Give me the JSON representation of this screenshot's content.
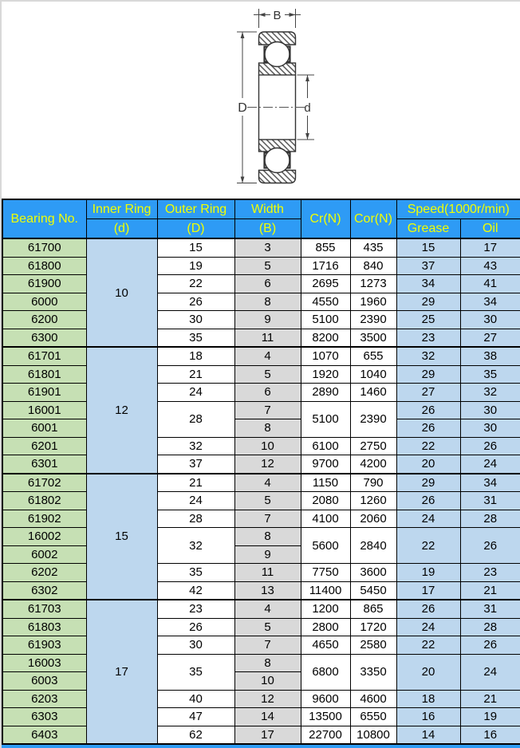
{
  "diagram": {
    "labels": {
      "width_label": "B",
      "outer_diameter_label": "D",
      "bore_diameter_label": "d"
    }
  },
  "table": {
    "header": {
      "bearing_no": "Bearing No.",
      "inner_ring": "Inner Ring",
      "inner_ring_sub": "(d)",
      "outer_ring": "Outer Ring",
      "outer_ring_sub": "(D)",
      "width": "Width",
      "width_sub": "(B)",
      "cr": "Cr(N)",
      "cor": "Cor(N)",
      "speed": "Speed(1000r/min)",
      "grease": "Grease",
      "oil": "Oil"
    },
    "groups": [
      {
        "d": "10",
        "rows": [
          {
            "no": "61700",
            "cells": {
              "D": "15",
              "B": "3",
              "cr": "855",
              "cor": "435",
              "grease": "15",
              "oil": "17"
            }
          },
          {
            "no": "61800",
            "cells": {
              "D": "19",
              "B": "5",
              "cr": "1716",
              "cor": "840",
              "grease": "37",
              "oil": "43"
            }
          },
          {
            "no": "61900",
            "cells": {
              "D": "22",
              "B": "6",
              "cr": "2695",
              "cor": "1273",
              "grease": "34",
              "oil": "41"
            }
          },
          {
            "no": "6000",
            "cells": {
              "D": "26",
              "B": "8",
              "cr": "4550",
              "cor": "1960",
              "grease": "29",
              "oil": "34"
            }
          },
          {
            "no": "6200",
            "cells": {
              "D": "30",
              "B": "9",
              "cr": "5100",
              "cor": "2390",
              "grease": "25",
              "oil": "30"
            }
          },
          {
            "no": "6300",
            "cells": {
              "D": "35",
              "B": "11",
              "cr": "8200",
              "cor": "3500",
              "grease": "23",
              "oil": "27"
            }
          }
        ]
      },
      {
        "d": "12",
        "rows": [
          {
            "no": "61701",
            "cells": {
              "D": "18",
              "B": "4",
              "cr": "1070",
              "cor": "655",
              "grease": "32",
              "oil": "38"
            }
          },
          {
            "no": "61801",
            "cells": {
              "D": "21",
              "B": "5",
              "cr": "1920",
              "cor": "1040",
              "grease": "29",
              "oil": "35"
            }
          },
          {
            "no": "61901",
            "cells": {
              "D": "24",
              "B": "6",
              "cr": "2890",
              "cor": "1460",
              "grease": "27",
              "oil": "32"
            }
          },
          {
            "no": "16001",
            "cells": {
              "D": {
                "v": "28",
                "rs": 2
              },
              "B": "7",
              "cr": {
                "v": "5100",
                "rs": 2
              },
              "cor": {
                "v": "2390",
                "rs": 2
              },
              "grease": "26",
              "oil": "30"
            }
          },
          {
            "no": "6001",
            "cells": {
              "D": null,
              "B": "8",
              "cr": null,
              "cor": null,
              "grease": "26",
              "oil": "30"
            }
          },
          {
            "no": "6201",
            "cells": {
              "D": "32",
              "B": "10",
              "cr": "6100",
              "cor": "2750",
              "grease": "22",
              "oil": "26"
            }
          },
          {
            "no": "6301",
            "cells": {
              "D": "37",
              "B": "12",
              "cr": "9700",
              "cor": "4200",
              "grease": "20",
              "oil": "24"
            }
          }
        ]
      },
      {
        "d": "15",
        "rows": [
          {
            "no": "61702",
            "cells": {
              "D": "21",
              "B": "4",
              "cr": "1150",
              "cor": "790",
              "grease": "29",
              "oil": "34"
            }
          },
          {
            "no": "61802",
            "cells": {
              "D": "24",
              "B": "5",
              "cr": "2080",
              "cor": "1260",
              "grease": "26",
              "oil": "31"
            }
          },
          {
            "no": "61902",
            "cells": {
              "D": "28",
              "B": "7",
              "cr": "4100",
              "cor": "2060",
              "grease": "24",
              "oil": "28"
            }
          },
          {
            "no": "16002",
            "cells": {
              "D": {
                "v": "32",
                "rs": 2
              },
              "B": "8",
              "cr": {
                "v": "5600",
                "rs": 2
              },
              "cor": {
                "v": "2840",
                "rs": 2
              },
              "grease": {
                "v": "22",
                "rs": 2
              },
              "oil": {
                "v": "26",
                "rs": 2
              }
            }
          },
          {
            "no": "6002",
            "cells": {
              "D": null,
              "B": "9",
              "cr": null,
              "cor": null,
              "grease": null,
              "oil": null
            }
          },
          {
            "no": "6202",
            "cells": {
              "D": "35",
              "B": "11",
              "cr": "7750",
              "cor": "3600",
              "grease": "19",
              "oil": "23"
            }
          },
          {
            "no": "6302",
            "cells": {
              "D": "42",
              "B": "13",
              "cr": "11400",
              "cor": "5450",
              "grease": "17",
              "oil": "21"
            }
          }
        ]
      },
      {
        "d": "17",
        "rows": [
          {
            "no": "61703",
            "cells": {
              "D": "23",
              "B": "4",
              "cr": "1200",
              "cor": "865",
              "grease": "26",
              "oil": "31"
            }
          },
          {
            "no": "61803",
            "cells": {
              "D": "26",
              "B": "5",
              "cr": "2800",
              "cor": "1720",
              "grease": "24",
              "oil": "28"
            }
          },
          {
            "no": "61903",
            "cells": {
              "D": "30",
              "B": "7",
              "cr": "4650",
              "cor": "2580",
              "grease": "22",
              "oil": "26"
            }
          },
          {
            "no": "16003",
            "cells": {
              "D": {
                "v": "35",
                "rs": 2
              },
              "B": "8",
              "cr": {
                "v": "6800",
                "rs": 2
              },
              "cor": {
                "v": "3350",
                "rs": 2
              },
              "grease": {
                "v": "20",
                "rs": 2
              },
              "oil": {
                "v": "24",
                "rs": 2
              }
            }
          },
          {
            "no": "6003",
            "cells": {
              "D": null,
              "B": "10",
              "cr": null,
              "cor": null,
              "grease": null,
              "oil": null
            }
          },
          {
            "no": "6203",
            "cells": {
              "D": "40",
              "B": "12",
              "cr": "9600",
              "cor": "4600",
              "grease": "18",
              "oil": "21"
            }
          },
          {
            "no": "6303",
            "cells": {
              "D": "47",
              "B": "14",
              "cr": "13500",
              "cor": "6550",
              "grease": "16",
              "oil": "19"
            }
          },
          {
            "no": "6403",
            "cells": {
              "D": "62",
              "B": "17",
              "cr": "22700",
              "cor": "10800",
              "grease": "14",
              "oil": "16"
            }
          }
        ]
      }
    ]
  },
  "colors": {
    "header_bg": "#2E9BF5",
    "header_text": "#F2FF00",
    "bearing_col_bg": "#C6E0B4",
    "blue_col_bg": "#BDD7EE",
    "width_col_bg": "#D9D9D9",
    "border": "#000000"
  }
}
